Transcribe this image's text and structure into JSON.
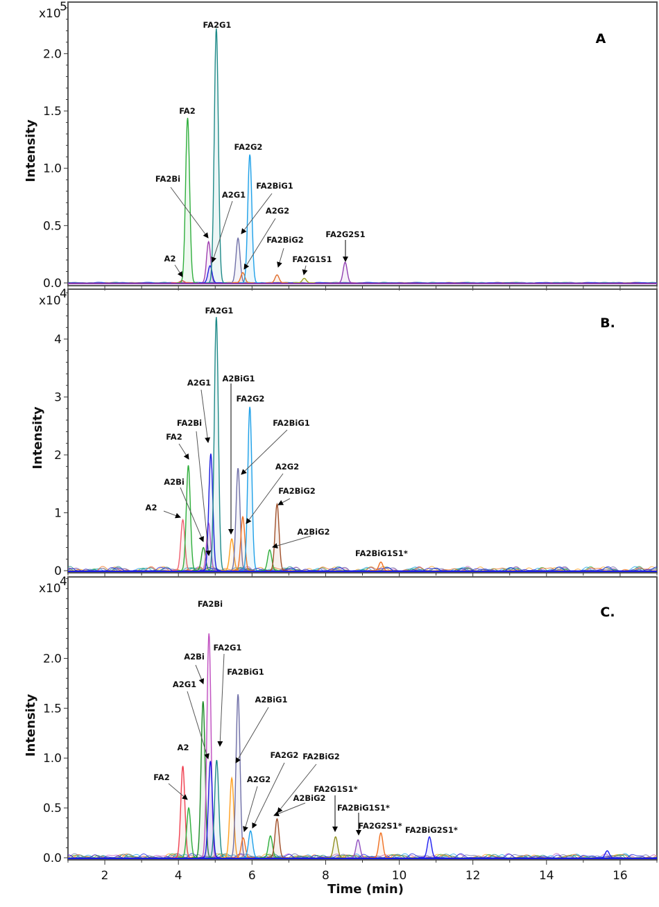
{
  "chart_data": [
    {
      "type": "line",
      "panel": "A",
      "ylabel": "Intensity",
      "y_multiplier": "x10",
      "y_exponent": "5",
      "xlim": [
        1,
        17
      ],
      "ylim": [
        0,
        2.45
      ],
      "yticks": [
        0,
        0.5,
        1.0,
        1.5,
        2.0
      ],
      "ytick_labels": [
        "0.0",
        "0.5",
        "1.0",
        "1.5",
        "2.0"
      ],
      "peaks": [
        {
          "label": "A2",
          "rt": 4.1,
          "height": 0.02,
          "color": "#e8454f"
        },
        {
          "label": "FA2",
          "rt": 4.25,
          "height": 1.44,
          "color": "#2fae3c"
        },
        {
          "label": "FA2Bi",
          "rt": 4.82,
          "height": 0.36,
          "color": "#a040b0"
        },
        {
          "label": "A2G1",
          "rt": 4.86,
          "height": 0.15,
          "color": "#2020e0"
        },
        {
          "label": "FA2G1",
          "rt": 5.03,
          "height": 2.22,
          "color": "#1f8a88"
        },
        {
          "label": "FA2BiG1",
          "rt": 5.62,
          "height": 0.39,
          "color": "#7070a8"
        },
        {
          "label": "A2G2",
          "rt": 5.75,
          "height": 0.09,
          "color": "#f07020"
        },
        {
          "label": "FA2G2",
          "rt": 5.94,
          "height": 1.12,
          "color": "#1ea0e8"
        },
        {
          "label": "FA2BiG2",
          "rt": 6.68,
          "height": 0.07,
          "color": "#e07030"
        },
        {
          "label": "FA2G1S1",
          "rt": 7.42,
          "height": 0.04,
          "color": "#a0a020"
        },
        {
          "label": "FA2G2S1",
          "rt": 8.53,
          "height": 0.18,
          "color": "#9040b0"
        }
      ]
    },
    {
      "type": "line",
      "panel": "B.",
      "ylabel": "Intensity",
      "y_multiplier": "x10",
      "y_exponent": "4",
      "xlim": [
        1,
        17
      ],
      "ylim": [
        0,
        4.85
      ],
      "yticks": [
        0,
        1,
        2,
        3,
        4
      ],
      "ytick_labels": [
        "0",
        "1",
        "2",
        "3",
        "4"
      ],
      "peaks": [
        {
          "label": "A2",
          "rt": 4.12,
          "height": 0.88,
          "color": "#f06070"
        },
        {
          "label": "FA2",
          "rt": 4.27,
          "height": 1.82,
          "color": "#2fae3c"
        },
        {
          "label": "A2Bi",
          "rt": 4.68,
          "height": 0.4,
          "color": "#2a9a30"
        },
        {
          "label": "FA2Bi",
          "rt": 4.82,
          "height": 0.82,
          "color": "#c060c0"
        },
        {
          "label": "A2G1",
          "rt": 4.88,
          "height": 2.02,
          "color": "#1a1ae0"
        },
        {
          "label": "FA2G1",
          "rt": 5.03,
          "height": 4.38,
          "color": "#1f8a88"
        },
        {
          "label": "A2BiG1",
          "rt": 5.45,
          "height": 0.55,
          "color": "#ffa020"
        },
        {
          "label": "FA2BiG1",
          "rt": 5.62,
          "height": 1.77,
          "color": "#7070a8"
        },
        {
          "label": "A2G2",
          "rt": 5.75,
          "height": 0.93,
          "color": "#f07020"
        },
        {
          "label": "FA2G2",
          "rt": 5.94,
          "height": 2.83,
          "color": "#1ea0e8"
        },
        {
          "label": "A2BiG2",
          "rt": 6.48,
          "height": 0.36,
          "color": "#2fae3c"
        },
        {
          "label": "FA2BiG2",
          "rt": 6.68,
          "height": 1.15,
          "color": "#a0502a"
        },
        {
          "label": "FA2BiG1S1*",
          "rt": 9.5,
          "height": 0.15,
          "color": "#f07020"
        }
      ]
    },
    {
      "type": "line",
      "panel": "C.",
      "ylabel": "Intensity",
      "xlabel": "Time (min)",
      "y_multiplier": "x10",
      "y_exponent": "4",
      "xlim": [
        1,
        17
      ],
      "ylim": [
        0,
        2.81
      ],
      "yticks": [
        0,
        0.5,
        1.0,
        1.5,
        2.0
      ],
      "ytick_labels": [
        "0.0",
        "0.5",
        "1.0",
        "1.5",
        "2.0"
      ],
      "xticks": [
        2,
        4,
        6,
        8,
        10,
        12,
        14,
        16
      ],
      "xtick_labels": [
        "2",
        "4",
        "6",
        "8",
        "10",
        "12",
        "14",
        "16"
      ],
      "peaks": [
        {
          "label": "A2",
          "rt": 4.12,
          "height": 0.92,
          "color": "#f04050"
        },
        {
          "label": "FA2",
          "rt": 4.28,
          "height": 0.5,
          "color": "#2fae3c"
        },
        {
          "label": "A2Bi",
          "rt": 4.67,
          "height": 1.57,
          "color": "#1e8a28"
        },
        {
          "label": "FA2Bi",
          "rt": 4.83,
          "height": 2.25,
          "color": "#c050c0"
        },
        {
          "label": "A2G1",
          "rt": 4.87,
          "height": 0.97,
          "color": "#1a1ae0"
        },
        {
          "label": "FA2G1",
          "rt": 5.04,
          "height": 0.98,
          "color": "#1f8a88"
        },
        {
          "label": "A2BiG1",
          "rt": 5.45,
          "height": 0.8,
          "color": "#ffa020"
        },
        {
          "label": "FA2BiG1",
          "rt": 5.62,
          "height": 1.64,
          "color": "#7070a8"
        },
        {
          "label": "A2G2",
          "rt": 5.76,
          "height": 0.2,
          "color": "#f07020"
        },
        {
          "label": "FA2G2",
          "rt": 5.96,
          "height": 0.27,
          "color": "#1ea0e8"
        },
        {
          "label": "A2BiG2",
          "rt": 6.5,
          "height": 0.22,
          "color": "#2fae3c"
        },
        {
          "label": "FA2BiG2",
          "rt": 6.68,
          "height": 0.39,
          "color": "#a0502a"
        },
        {
          "label": "FA2G1S1*",
          "rt": 8.27,
          "height": 0.21,
          "color": "#909020"
        },
        {
          "label": "FA2BiG1S1*",
          "rt": 8.88,
          "height": 0.18,
          "color": "#9050c0"
        },
        {
          "label": "FA2G2S1*",
          "rt": 9.5,
          "height": 0.25,
          "color": "#f07020"
        },
        {
          "label": "FA2BiG2S1*",
          "rt": 10.82,
          "height": 0.21,
          "color": "#2020f0"
        },
        {
          "rt": 15.65,
          "height": 0.07,
          "color": "#2020f0"
        }
      ]
    }
  ]
}
